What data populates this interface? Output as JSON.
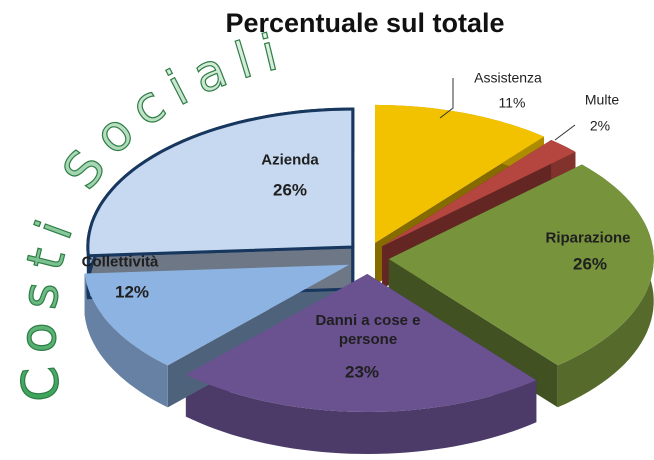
{
  "chart_data": {
    "type": "pie3d",
    "title": "Percentuale sul totale",
    "wordart": "Costi Sociali",
    "categories": [
      "Assistenza",
      "Multe",
      "Riparazione",
      "Danni a cose e persone",
      "Collettività",
      "Azienda"
    ],
    "values": [
      11,
      2,
      26,
      23,
      12,
      26
    ],
    "value_labels": [
      "11%",
      "2%",
      "26%",
      "23%",
      "12%",
      "26%"
    ],
    "colors": [
      "#f2c200",
      "#b5453f",
      "#77933c",
      "#6a5190",
      "#8db3e2",
      "#c6d9f1"
    ]
  }
}
